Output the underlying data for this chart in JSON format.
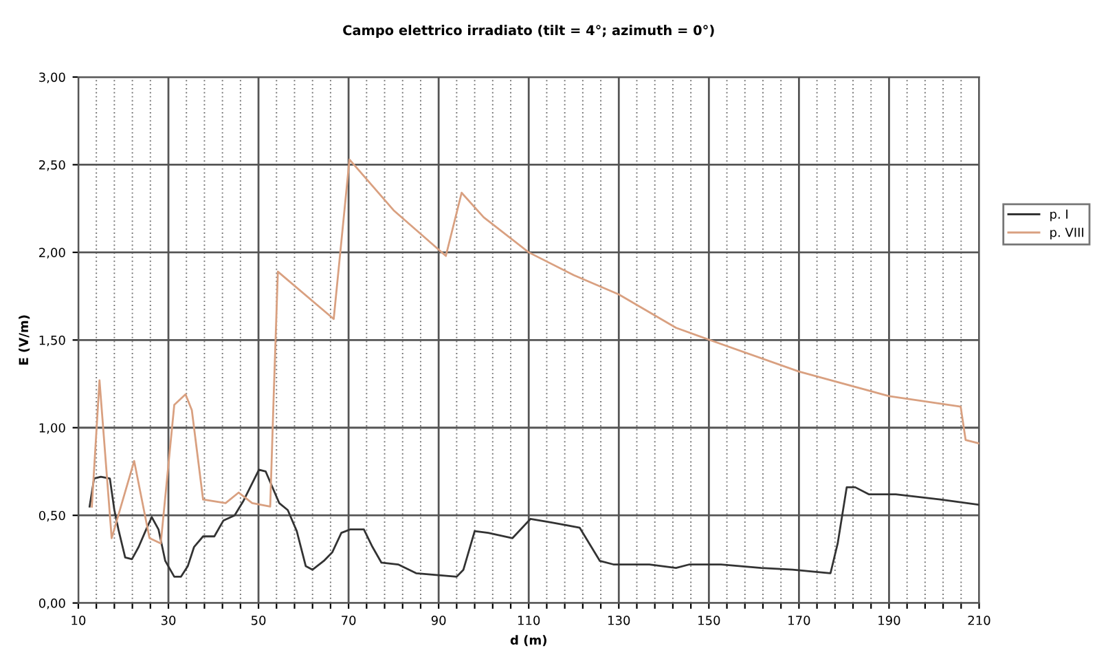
{
  "chart_data": {
    "type": "line",
    "title": "Campo elettrico irradiato (tilt = 4°; azimuth = 0°)",
    "xlabel": "d (m)",
    "ylabel": "E (V/m)",
    "xlim": [
      10,
      210
    ],
    "ylim": [
      0,
      3
    ],
    "xticks": [
      10,
      {
        "value": 14,
        "label": null
      },
      {
        "value": 18,
        "label": null
      },
      {
        "value": 22,
        "label": null
      },
      {
        "value": 26,
        "label": null
      },
      30,
      {
        "value": 34,
        "label": null
      },
      {
        "value": 38,
        "label": null
      },
      {
        "value": 42,
        "label": null
      },
      {
        "value": 46,
        "label": null
      },
      50,
      {
        "value": 54,
        "label": null
      },
      {
        "value": 58,
        "label": null
      },
      {
        "value": 62,
        "label": null
      },
      {
        "value": 66,
        "label": null
      },
      70,
      {
        "value": 74,
        "label": null
      },
      {
        "value": 78,
        "label": null
      },
      {
        "value": 82,
        "label": null
      },
      {
        "value": 86,
        "label": null
      },
      90,
      {
        "value": 94,
        "label": null
      },
      {
        "value": 98,
        "label": null
      },
      {
        "value": 102,
        "label": null
      },
      {
        "value": 106,
        "label": null
      },
      110,
      {
        "value": 114,
        "label": null
      },
      {
        "value": 118,
        "label": null
      },
      {
        "value": 122,
        "label": null
      },
      {
        "value": 126,
        "label": null
      },
      130,
      {
        "value": 134,
        "label": null
      },
      {
        "value": 138,
        "label": null
      },
      {
        "value": 142,
        "label": null
      },
      {
        "value": 146,
        "label": null
      },
      150,
      {
        "value": 154,
        "label": null
      },
      {
        "value": 158,
        "label": null
      },
      {
        "value": 162,
        "label": null
      },
      {
        "value": 166,
        "label": null
      },
      170,
      {
        "value": 174,
        "label": null
      },
      {
        "value": 178,
        "label": null
      },
      {
        "value": 182,
        "label": null
      },
      {
        "value": 186,
        "label": null
      },
      190,
      {
        "value": 194,
        "label": null
      },
      {
        "value": 198,
        "label": null
      },
      {
        "value": 202,
        "label": null
      },
      {
        "value": 206,
        "label": null
      },
      210
    ],
    "yticks": [
      {
        "value": 0,
        "label": "0,00"
      },
      {
        "value": 0.5,
        "label": "0,50"
      },
      {
        "value": 1,
        "label": "1,00"
      },
      {
        "value": 1.5,
        "label": "1,50"
      },
      {
        "value": 2,
        "label": "2,00"
      },
      {
        "value": 2.5,
        "label": "2,50"
      },
      {
        "value": 3,
        "label": "3,00"
      }
    ],
    "grid": true,
    "legend": "right",
    "marker": "none",
    "line_style": "solid",
    "series": [
      {
        "name": "p. I",
        "color": "#333333",
        "x": [
          12.5,
          13.5,
          15,
          17,
          18,
          18.9,
          20.4,
          21.9,
          23.4,
          24.9,
          26.3,
          27.8,
          29.3,
          31.3,
          32.8,
          34.3,
          35.7,
          37.7,
          40.2,
          42.2,
          44.7,
          46.6,
          50.1,
          51.6,
          53.6,
          54.6,
          56.5,
          58.5,
          60.5,
          62,
          64.5,
          66.4,
          68.4,
          70.4,
          73.4,
          75.3,
          77.3,
          81,
          85,
          94,
          95.5,
          98,
          101,
          106.4,
          110.4,
          114.9,
          121.3,
          125.8,
          128.8,
          136.8,
          142.7,
          145.7,
          152.7,
          161.6,
          168.6,
          177,
          178.6,
          180.6,
          182.5,
          185.5,
          191.5,
          201.4,
          210
        ],
        "values": [
          0.55,
          0.71,
          0.72,
          0.71,
          0.53,
          0.42,
          0.26,
          0.25,
          0.32,
          0.41,
          0.49,
          0.42,
          0.24,
          0.15,
          0.15,
          0.21,
          0.32,
          0.38,
          0.38,
          0.47,
          0.5,
          0.58,
          0.76,
          0.75,
          0.63,
          0.57,
          0.53,
          0.41,
          0.21,
          0.19,
          0.24,
          0.29,
          0.4,
          0.42,
          0.42,
          0.32,
          0.23,
          0.22,
          0.17,
          0.15,
          0.19,
          0.41,
          0.4,
          0.37,
          0.48,
          0.46,
          0.43,
          0.24,
          0.22,
          0.22,
          0.2,
          0.22,
          0.22,
          0.2,
          0.19,
          0.17,
          0.34,
          0.66,
          0.66,
          0.62,
          0.62,
          0.59,
          0.56
        ]
      },
      {
        "name": "p. VIII",
        "color": "#d9a080",
        "x": [
          13,
          14.7,
          17.4,
          22.4,
          25.8,
          28.3,
          31.3,
          33.8,
          35.2,
          37.7,
          42.7,
          45.6,
          48.6,
          52.6,
          53.4,
          54.3,
          66.7,
          70.2,
          80,
          91.6,
          95.1,
          100,
          110,
          120,
          130,
          142.7,
          150.2,
          170,
          190,
          205.9,
          207,
          210
        ],
        "values": [
          0.55,
          1.27,
          0.37,
          0.81,
          0.37,
          0.34,
          1.13,
          1.19,
          1.1,
          0.59,
          0.57,
          0.63,
          0.57,
          0.55,
          1.2,
          1.89,
          1.62,
          2.53,
          2.24,
          1.98,
          2.34,
          2.2,
          2.0,
          1.87,
          1.76,
          1.57,
          1.5,
          1.32,
          1.18,
          1.12,
          0.93,
          0.91
        ]
      }
    ]
  }
}
